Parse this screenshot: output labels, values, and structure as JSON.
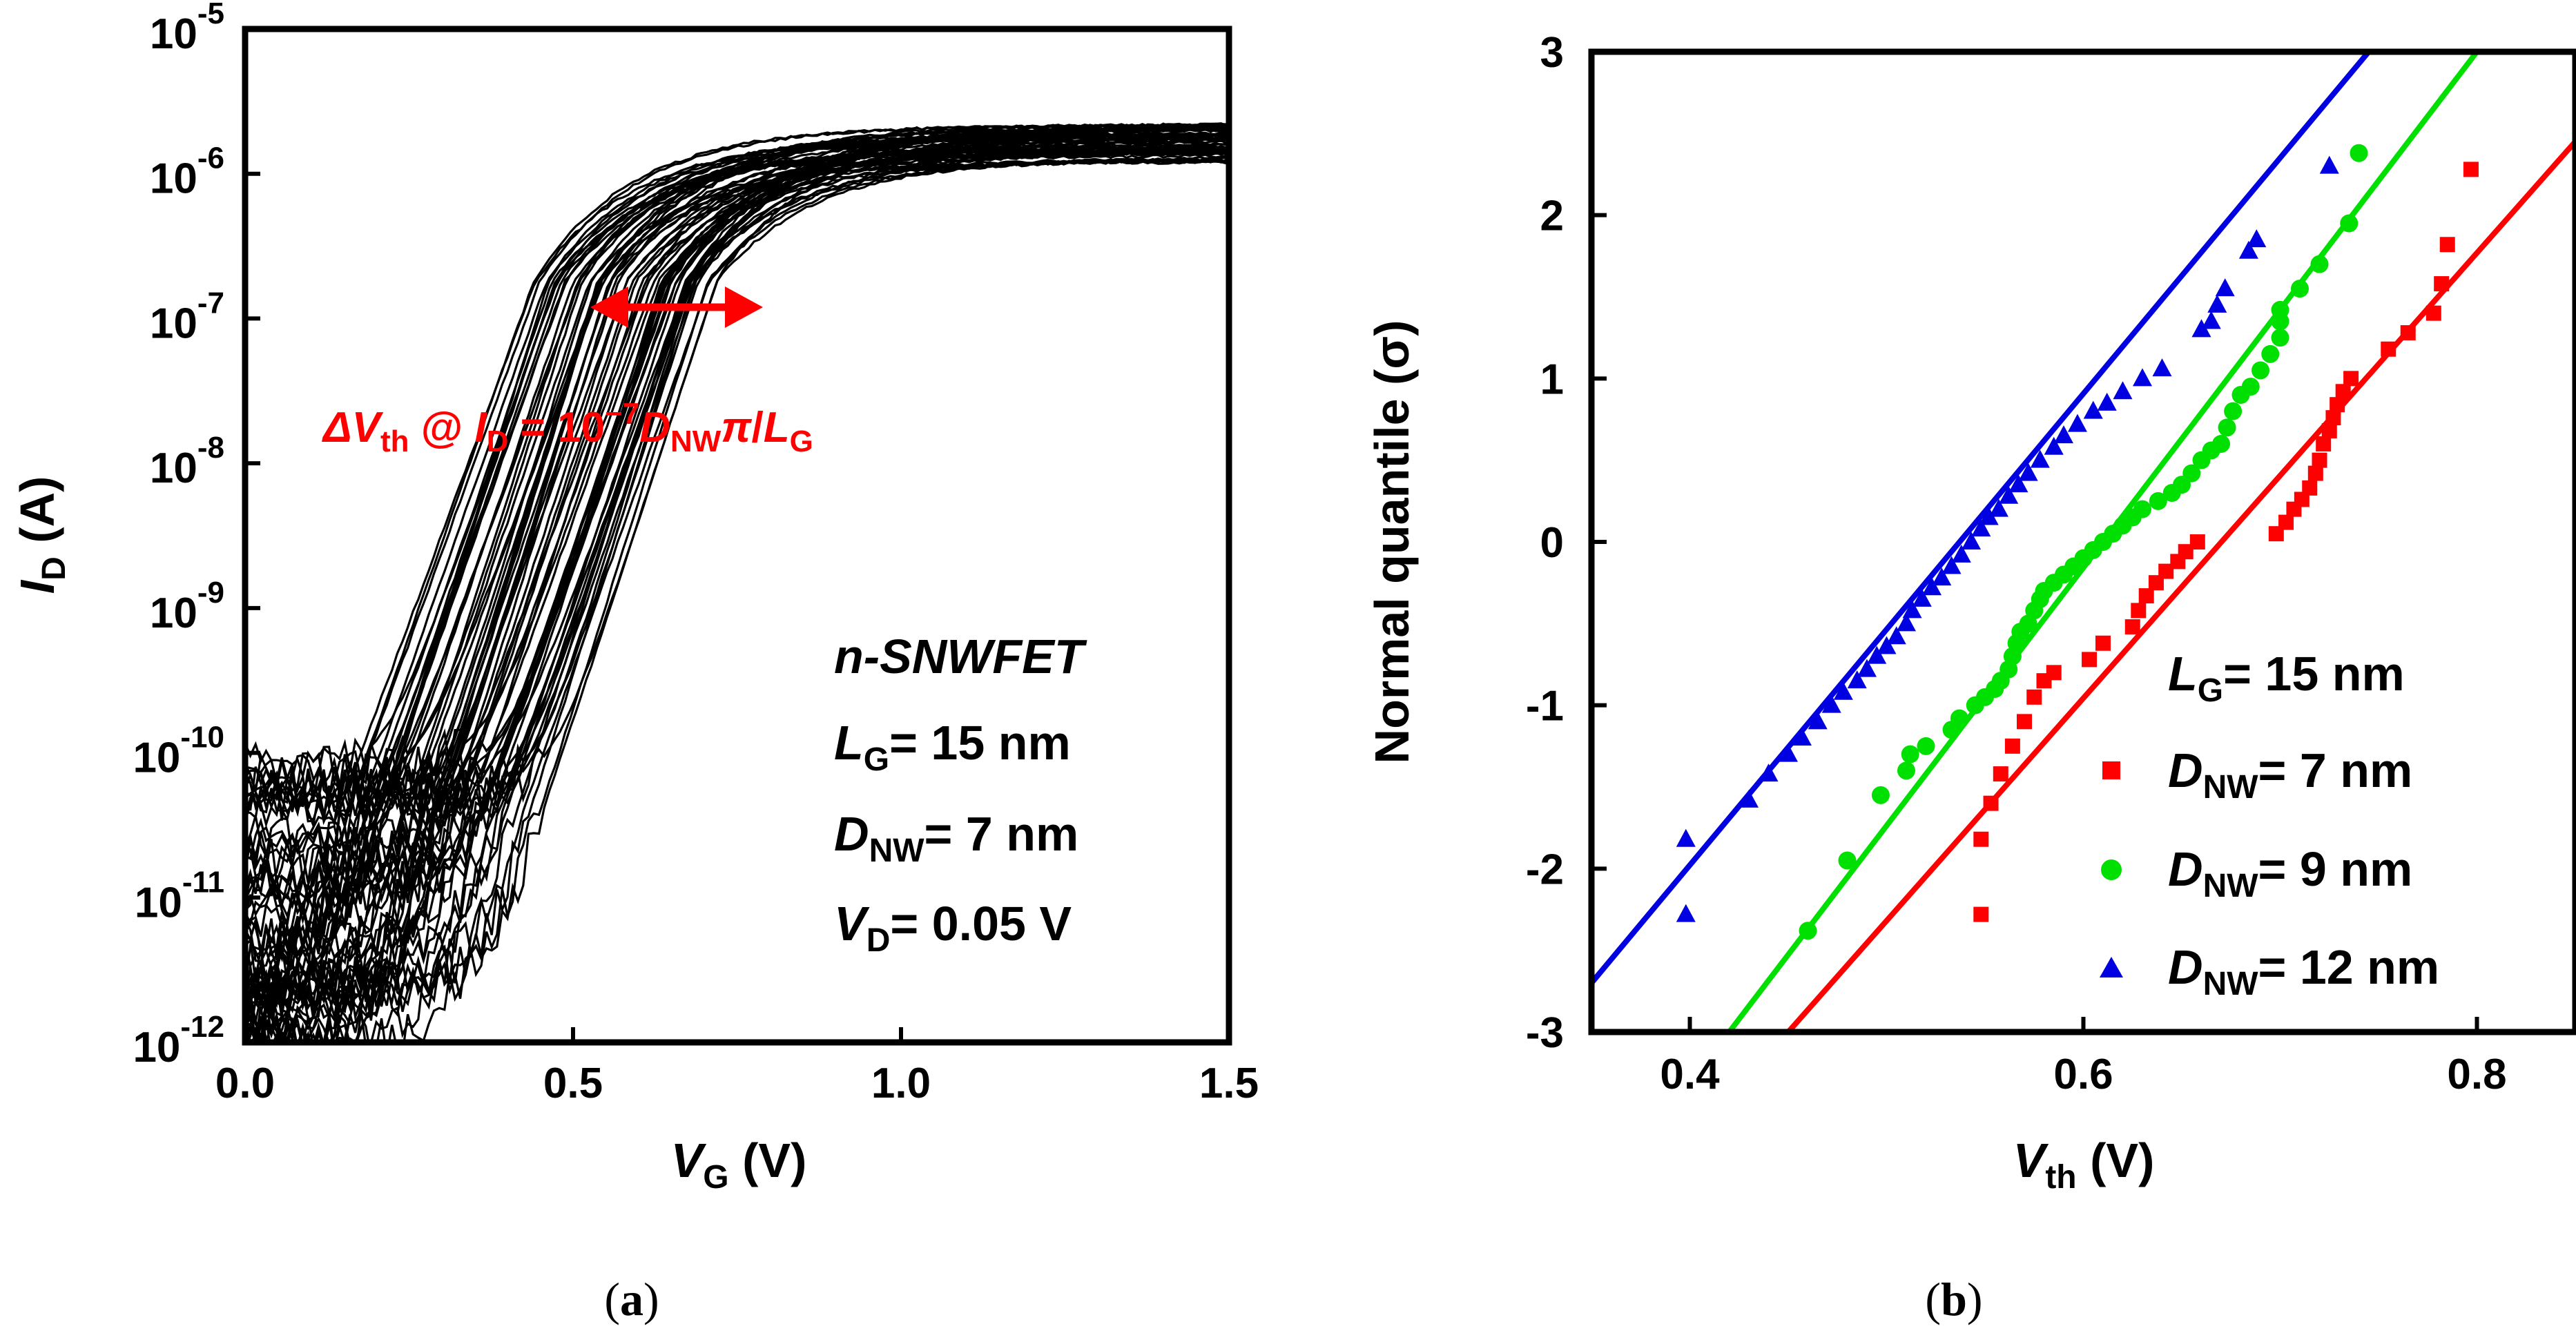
{
  "chart_data": [
    {
      "panel": "a",
      "type": "line",
      "caption_label": "a",
      "xlabel_main": "V",
      "xlabel_sub": "G",
      "xlabel_unit": " (V)",
      "ylabel_main": "I",
      "ylabel_sub": "D",
      "ylabel_unit": " (A)",
      "xlim": [
        0.0,
        1.5
      ],
      "ylim_log10": [
        -12,
        -5
      ],
      "x_ticks": [
        "0.0",
        "0.5",
        "1.0",
        "1.5"
      ],
      "y_ticks": [
        {
          "base": "10",
          "exp": "-5"
        },
        {
          "base": "10",
          "exp": "-6"
        },
        {
          "base": "10",
          "exp": "-7"
        },
        {
          "base": "10",
          "exp": "-8"
        },
        {
          "base": "10",
          "exp": "-9"
        },
        {
          "base": "10",
          "exp": "-10"
        },
        {
          "base": "10",
          "exp": "-11"
        },
        {
          "base": "10",
          "exp": "-12"
        }
      ],
      "annotation": {
        "delta": "ΔV",
        "th": "th",
        "at": " @ ",
        "id_main": "I",
        "id_sub": "D",
        "eq": " = 10",
        "exp": "−7",
        "dnw": "D",
        "dnw_sub": "NW",
        "pi": "π",
        "slash": "/",
        "lg": "L",
        "lg_sub": "G"
      },
      "device_info": {
        "device": "n-SNWFET",
        "lg_main": "L",
        "lg_sub": "G",
        "lg_val": "= 15 nm",
        "dnw_main": "D",
        "dnw_sub": "NW",
        "dnw_val": "= 7 nm",
        "vd_main": "V",
        "vd_sub": "D",
        "vd_val": "= 0.05 V"
      },
      "curve_family": {
        "count": 64,
        "vth_range_V": [
          0.42,
          0.72
        ],
        "subthreshold_swing_mV_per_dec": 75,
        "i_on_at_1p5V_A": [
          1.2e-06,
          2.2e-06
        ],
        "i_off_floor_A": [
          1e-12,
          1.1e-10
        ],
        "color": "#000000"
      }
    },
    {
      "panel": "b",
      "type": "scatter",
      "caption_label": "b",
      "xlabel_main": "V",
      "xlabel_sub": "th",
      "xlabel_unit": " (V)",
      "ylabel": "Normal quantile (σ)",
      "xlim": [
        0.35,
        0.85
      ],
      "ylim": [
        -3,
        3
      ],
      "x_ticks": [
        {
          "v": 0.4,
          "label": "0.4"
        },
        {
          "v": 0.6,
          "label": "0.6"
        },
        {
          "v": 0.8,
          "label": "0.8"
        }
      ],
      "y_ticks": [
        {
          "v": 3,
          "label": "3"
        },
        {
          "v": 2,
          "label": "2"
        },
        {
          "v": 1,
          "label": "1"
        },
        {
          "v": 0,
          "label": "0"
        },
        {
          "v": -1,
          "label": "-1"
        },
        {
          "v": -2,
          "label": "-2"
        },
        {
          "v": -3,
          "label": "-3"
        }
      ],
      "legend_header": {
        "main": "L",
        "sub": "G",
        "val": "= 15 nm"
      },
      "series": [
        {
          "name": "D_NW = 7 nm",
          "leg_main": "D",
          "leg_sub": "NW",
          "leg_val": "= 7 nm",
          "color": "#ff0000",
          "marker": "square",
          "fit": {
            "x0": 0.45,
            "y0": -3,
            "x1": 0.85,
            "y1": 2.45
          },
          "points": [
            [
              0.548,
              -2.28
            ],
            [
              0.548,
              -1.82
            ],
            [
              0.553,
              -1.6
            ],
            [
              0.558,
              -1.42
            ],
            [
              0.564,
              -1.25
            ],
            [
              0.57,
              -1.1
            ],
            [
              0.575,
              -0.95
            ],
            [
              0.58,
              -0.85
            ],
            [
              0.585,
              -0.8
            ],
            [
              0.603,
              -0.72
            ],
            [
              0.61,
              -0.62
            ],
            [
              0.625,
              -0.52
            ],
            [
              0.628,
              -0.42
            ],
            [
              0.632,
              -0.33
            ],
            [
              0.637,
              -0.25
            ],
            [
              0.642,
              -0.18
            ],
            [
              0.648,
              -0.12
            ],
            [
              0.652,
              -0.06
            ],
            [
              0.658,
              0.0
            ],
            [
              0.698,
              0.05
            ],
            [
              0.703,
              0.12
            ],
            [
              0.707,
              0.2
            ],
            [
              0.711,
              0.26
            ],
            [
              0.715,
              0.33
            ],
            [
              0.718,
              0.42
            ],
            [
              0.72,
              0.5
            ],
            [
              0.722,
              0.6
            ],
            [
              0.725,
              0.68
            ],
            [
              0.727,
              0.76
            ],
            [
              0.729,
              0.84
            ],
            [
              0.732,
              0.92
            ],
            [
              0.736,
              1.0
            ],
            [
              0.755,
              1.18
            ],
            [
              0.765,
              1.28
            ],
            [
              0.778,
              1.4
            ],
            [
              0.782,
              1.58
            ],
            [
              0.785,
              1.82
            ],
            [
              0.797,
              2.28
            ]
          ]
        },
        {
          "name": "D_NW = 9 nm",
          "leg_main": "D",
          "leg_sub": "NW",
          "leg_val": "= 9 nm",
          "color": "#00e000",
          "marker": "circle",
          "fit": {
            "x0": 0.42,
            "y0": -3,
            "x1": 0.8,
            "y1": 3
          },
          "points": [
            [
              0.46,
              -2.38
            ],
            [
              0.48,
              -1.95
            ],
            [
              0.497,
              -1.55
            ],
            [
              0.51,
              -1.4
            ],
            [
              0.512,
              -1.3
            ],
            [
              0.52,
              -1.25
            ],
            [
              0.533,
              -1.15
            ],
            [
              0.537,
              -1.08
            ],
            [
              0.545,
              -1.0
            ],
            [
              0.55,
              -0.95
            ],
            [
              0.555,
              -0.9
            ],
            [
              0.558,
              -0.85
            ],
            [
              0.562,
              -0.78
            ],
            [
              0.564,
              -0.7
            ],
            [
              0.566,
              -0.62
            ],
            [
              0.568,
              -0.55
            ],
            [
              0.572,
              -0.5
            ],
            [
              0.575,
              -0.42
            ],
            [
              0.578,
              -0.35
            ],
            [
              0.58,
              -0.3
            ],
            [
              0.585,
              -0.25
            ],
            [
              0.59,
              -0.2
            ],
            [
              0.595,
              -0.15
            ],
            [
              0.6,
              -0.1
            ],
            [
              0.605,
              -0.05
            ],
            [
              0.61,
              0.0
            ],
            [
              0.615,
              0.05
            ],
            [
              0.62,
              0.1
            ],
            [
              0.625,
              0.15
            ],
            [
              0.63,
              0.2
            ],
            [
              0.638,
              0.25
            ],
            [
              0.645,
              0.3
            ],
            [
              0.65,
              0.35
            ],
            [
              0.655,
              0.42
            ],
            [
              0.66,
              0.5
            ],
            [
              0.665,
              0.56
            ],
            [
              0.67,
              0.6
            ],
            [
              0.673,
              0.7
            ],
            [
              0.676,
              0.8
            ],
            [
              0.68,
              0.9
            ],
            [
              0.685,
              0.95
            ],
            [
              0.69,
              1.05
            ],
            [
              0.695,
              1.15
            ],
            [
              0.7,
              1.25
            ],
            [
              0.7,
              1.35
            ],
            [
              0.7,
              1.42
            ],
            [
              0.71,
              1.55
            ],
            [
              0.72,
              1.7
            ],
            [
              0.735,
              1.95
            ],
            [
              0.74,
              2.38
            ]
          ]
        },
        {
          "name": "D_NW = 12 nm",
          "leg_main": "D",
          "leg_sub": "NW",
          "leg_val": "= 12 nm",
          "color": "#0000e0",
          "marker": "triangle",
          "fit": {
            "x0": 0.35,
            "y0": -2.7,
            "x1": 0.745,
            "y1": 3
          },
          "points": [
            [
              0.398,
              -2.28
            ],
            [
              0.398,
              -1.82
            ],
            [
              0.43,
              -1.58
            ],
            [
              0.44,
              -1.42
            ],
            [
              0.45,
              -1.3
            ],
            [
              0.457,
              -1.2
            ],
            [
              0.465,
              -1.1
            ],
            [
              0.472,
              -1.0
            ],
            [
              0.478,
              -0.92
            ],
            [
              0.485,
              -0.85
            ],
            [
              0.49,
              -0.78
            ],
            [
              0.495,
              -0.7
            ],
            [
              0.5,
              -0.64
            ],
            [
              0.505,
              -0.58
            ],
            [
              0.51,
              -0.5
            ],
            [
              0.513,
              -0.42
            ],
            [
              0.518,
              -0.35
            ],
            [
              0.523,
              -0.28
            ],
            [
              0.528,
              -0.22
            ],
            [
              0.533,
              -0.15
            ],
            [
              0.538,
              -0.08
            ],
            [
              0.543,
              0.0
            ],
            [
              0.548,
              0.08
            ],
            [
              0.552,
              0.15
            ],
            [
              0.557,
              0.2
            ],
            [
              0.562,
              0.28
            ],
            [
              0.567,
              0.35
            ],
            [
              0.572,
              0.42
            ],
            [
              0.578,
              0.5
            ],
            [
              0.585,
              0.58
            ],
            [
              0.59,
              0.65
            ],
            [
              0.597,
              0.72
            ],
            [
              0.605,
              0.8
            ],
            [
              0.612,
              0.85
            ],
            [
              0.62,
              0.92
            ],
            [
              0.63,
              1.0
            ],
            [
              0.64,
              1.06
            ],
            [
              0.66,
              1.3
            ],
            [
              0.665,
              1.35
            ],
            [
              0.668,
              1.45
            ],
            [
              0.672,
              1.55
            ],
            [
              0.684,
              1.78
            ],
            [
              0.688,
              1.85
            ],
            [
              0.725,
              2.3
            ]
          ]
        }
      ]
    }
  ]
}
